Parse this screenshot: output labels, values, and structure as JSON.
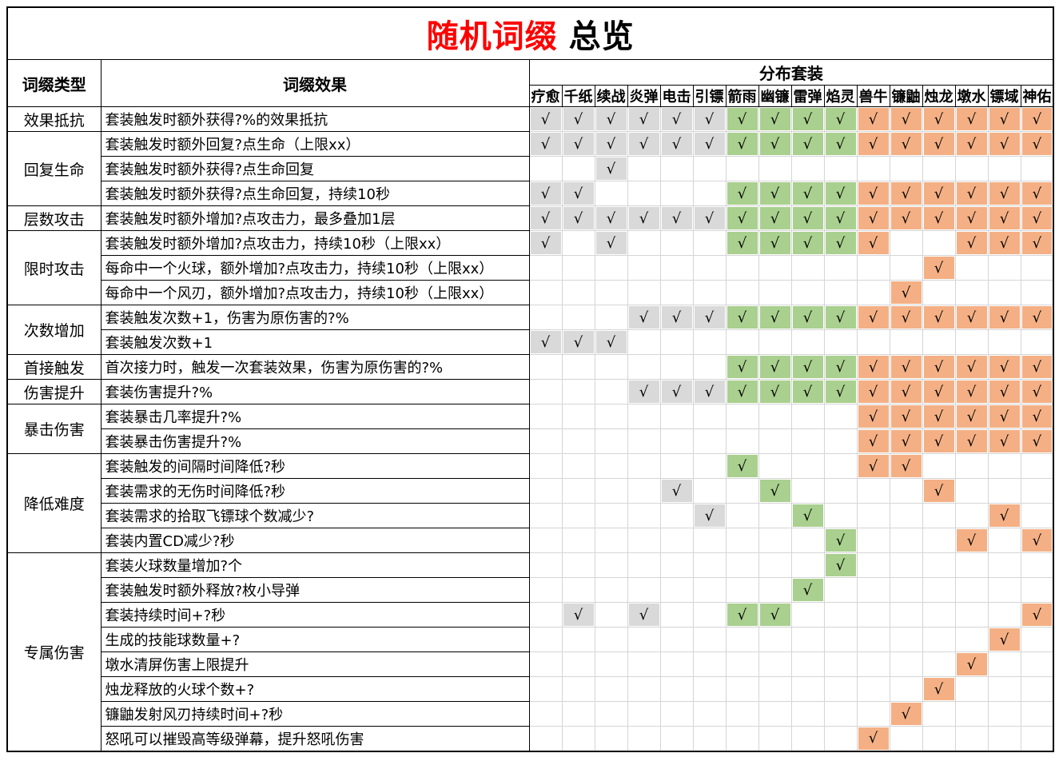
{
  "title": {
    "red": "随机词缀",
    "black": "总览"
  },
  "headers": {
    "type": "词缀类型",
    "effect": "词缀效果",
    "distribution": "分布套装"
  },
  "check_symbol": "√",
  "sets": [
    "疗愈",
    "千纸",
    "续战",
    "炎弹",
    "电击",
    "引镖",
    "箭雨",
    "幽镰",
    "雷弹",
    "焰灵",
    "兽牛",
    "镰鼬",
    "烛龙",
    "墩水",
    "镖域",
    "神佑"
  ],
  "set_groups": [
    {
      "start": 0,
      "end": 5,
      "color": "#d9d9d9",
      "name": "gray"
    },
    {
      "start": 6,
      "end": 9,
      "color": "#a9d08e",
      "name": "green"
    },
    {
      "start": 10,
      "end": 15,
      "color": "#f4b084",
      "name": "orange"
    }
  ],
  "groups": [
    {
      "type": "效果抵抗",
      "rows": [
        {
          "effect": "套装触发时额外获得?%的效果抵抗",
          "checks": [
            0,
            1,
            2,
            3,
            4,
            5,
            6,
            7,
            8,
            9,
            10,
            11,
            12,
            13,
            14,
            15
          ]
        }
      ]
    },
    {
      "type": "回复生命",
      "rows": [
        {
          "effect": "套装触发时额外回复?点生命（上限xx）",
          "checks": [
            0,
            1,
            2,
            3,
            4,
            5,
            6,
            7,
            8,
            9,
            10,
            11,
            12,
            13,
            14,
            15
          ]
        },
        {
          "effect": "套装触发时额外获得?点生命回复",
          "checks": [
            2
          ]
        },
        {
          "effect": "套装触发时额外获得?点生命回复，持续10秒",
          "checks": [
            0,
            1,
            6,
            7,
            8,
            9,
            10,
            11,
            12,
            13,
            14,
            15
          ]
        }
      ]
    },
    {
      "type": "层数攻击",
      "rows": [
        {
          "effect": "套装触发时额外增加?点攻击力，最多叠加1层",
          "checks": [
            0,
            1,
            2,
            3,
            4,
            5,
            6,
            7,
            8,
            9,
            10,
            11,
            12,
            13,
            14,
            15
          ]
        }
      ]
    },
    {
      "type": "限时攻击",
      "rows": [
        {
          "effect": "套装触发时额外增加?点攻击力，持续10秒（上限xx）",
          "checks": [
            0,
            2,
            6,
            7,
            8,
            9,
            10,
            13,
            14,
            15
          ]
        },
        {
          "effect": "每命中一个火球，额外增加?点攻击力，持续10秒（上限xx）",
          "checks": [
            12
          ]
        },
        {
          "effect": "每命中一个风刃，额外增加?点攻击力，持续10秒（上限xx）",
          "checks": [
            11
          ]
        }
      ]
    },
    {
      "type": "次数增加",
      "rows": [
        {
          "effect": "套装触发次数+1，伤害为原伤害的?%",
          "checks": [
            3,
            4,
            5,
            6,
            7,
            8,
            9,
            10,
            11,
            12,
            13,
            14,
            15
          ]
        },
        {
          "effect": "套装触发次数+1",
          "checks": [
            0,
            1,
            2
          ]
        }
      ]
    },
    {
      "type": "首接触发",
      "rows": [
        {
          "effect": "首次接力时，触发一次套装效果，伤害为原伤害的?%",
          "checks": [
            6,
            7,
            8,
            9,
            10,
            11,
            12,
            13,
            14,
            15
          ]
        }
      ]
    },
    {
      "type": "伤害提升",
      "rows": [
        {
          "effect": "套装伤害提升?%",
          "checks": [
            3,
            4,
            5,
            6,
            7,
            8,
            9,
            10,
            11,
            12,
            13,
            14,
            15
          ]
        }
      ]
    },
    {
      "type": "暴击伤害",
      "rows": [
        {
          "effect": "套装暴击几率提升?%",
          "checks": [
            10,
            11,
            12,
            13,
            14,
            15
          ]
        },
        {
          "effect": "套装暴击伤害提升?%",
          "checks": [
            10,
            11,
            12,
            13,
            14,
            15
          ]
        }
      ]
    },
    {
      "type": "降低难度",
      "rows": [
        {
          "effect": "套装触发的间隔时间降低?秒",
          "checks": [
            6,
            10,
            11
          ]
        },
        {
          "effect": "套装需求的无伤时间降低?秒",
          "checks": [
            4,
            7,
            12
          ]
        },
        {
          "effect": "套装需求的拾取飞镖球个数减少?",
          "checks": [
            5,
            8,
            14
          ]
        },
        {
          "effect": "套装内置CD减少?秒",
          "checks": [
            9,
            13,
            15
          ]
        }
      ]
    },
    {
      "type": "专属伤害",
      "rows": [
        {
          "effect": "套装火球数量增加?个",
          "checks": [
            9
          ]
        },
        {
          "effect": "套装触发时额外释放?枚小导弹",
          "checks": [
            8
          ]
        },
        {
          "effect": "套装持续时间+?秒",
          "checks": [
            1,
            3,
            6,
            7,
            15
          ]
        },
        {
          "effect": "生成的技能球数量+?",
          "checks": [
            14
          ]
        },
        {
          "effect": "墩水清屏伤害上限提升",
          "checks": [
            13
          ]
        },
        {
          "effect": "烛龙释放的火球个数+?",
          "checks": [
            12
          ]
        },
        {
          "effect": "镰鼬发射风刃持续时间+?秒",
          "checks": [
            11
          ]
        },
        {
          "effect": "怒吼可以摧毁高等级弹幕，提升怒吼伤害",
          "checks": [
            10
          ]
        }
      ]
    }
  ]
}
